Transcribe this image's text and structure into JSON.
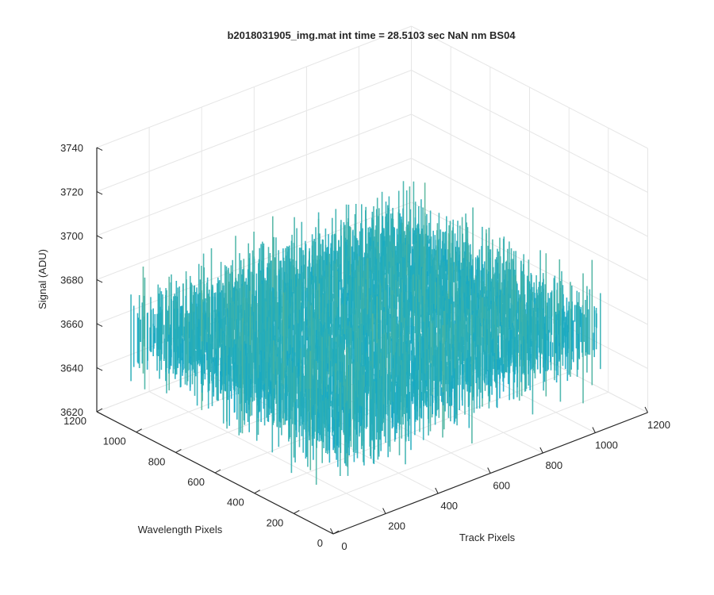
{
  "chart_data": {
    "type": "surface",
    "title": "b2018031905_img.mat int time = 28.5103 sec  NaN nm BS04",
    "xlabel": "Track Pixels",
    "ylabel": "Wavelength Pixels",
    "zlabel": "Signal (ADU)",
    "xlim": [
      0,
      1200
    ],
    "ylim": [
      0,
      1200
    ],
    "zlim": [
      3620,
      3740
    ],
    "x_ticks": [
      "0",
      "200",
      "400",
      "600",
      "800",
      "1000",
      "1200"
    ],
    "y_ticks": [
      "0",
      "200",
      "400",
      "600",
      "800",
      "1000",
      "1200"
    ],
    "z_ticks": [
      "3620",
      "3640",
      "3660",
      "3680",
      "3700",
      "3720",
      "3740"
    ],
    "grid": true,
    "colormap": "parula",
    "surface": {
      "x_extent": [
        0,
        1024
      ],
      "y_extent": [
        0,
        1024
      ],
      "mean_signal": 3665,
      "noise_std": 6,
      "min_signal": 3630,
      "max_signal": 3705
    },
    "colors": {
      "low": "#0a72d8",
      "mid": "#17aac3",
      "high": "#a8c45f",
      "axis": "#262626",
      "grid": "#e6e6e6"
    }
  }
}
